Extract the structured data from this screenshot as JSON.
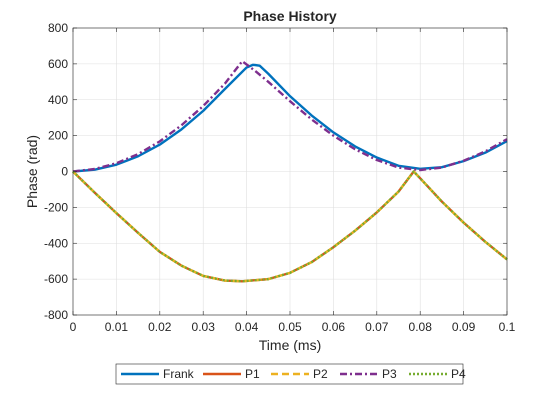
{
  "chart_data": {
    "type": "line",
    "title": "Phase History",
    "xlabel": "Time (ms)",
    "ylabel": "Phase (rad)",
    "xlim": [
      0,
      0.1
    ],
    "ylim": [
      -800,
      800
    ],
    "xticks": [
      0,
      0.01,
      0.02,
      0.03,
      0.04,
      0.05,
      0.06,
      0.07,
      0.08,
      0.09,
      0.1
    ],
    "xtick_labels": [
      "0",
      "0.01",
      "0.02",
      "0.03",
      "0.04",
      "0.05",
      "0.06",
      "0.07",
      "0.08",
      "0.09",
      "0.1"
    ],
    "yticks": [
      -800,
      -600,
      -400,
      -200,
      0,
      200,
      400,
      600,
      800
    ],
    "ytick_labels": [
      "-800",
      "-600",
      "-400",
      "-200",
      "0",
      "200",
      "400",
      "600",
      "800"
    ],
    "grid": true,
    "legend_position": "bottom-outside",
    "series": [
      {
        "name": "Frank",
        "color": "#0072BD",
        "style": "solid",
        "x": [
          0,
          0.005,
          0.01,
          0.015,
          0.02,
          0.025,
          0.03,
          0.035,
          0.04,
          0.0415,
          0.043,
          0.045,
          0.05,
          0.055,
          0.06,
          0.065,
          0.07,
          0.075,
          0.08,
          0.085,
          0.09,
          0.095,
          0.1
        ],
        "y": [
          0,
          10,
          38,
          85,
          150,
          235,
          338,
          460,
          580,
          595,
          590,
          545,
          420,
          312,
          218,
          140,
          78,
          32,
          15,
          24,
          58,
          105,
          170
        ]
      },
      {
        "name": "P1",
        "color": "#D95319",
        "style": "solid",
        "x": [
          0,
          0.005,
          0.01,
          0.015,
          0.02,
          0.025,
          0.03,
          0.035,
          0.039,
          0.045,
          0.05,
          0.055,
          0.06,
          0.065,
          0.07,
          0.075,
          0.0785,
          0.08,
          0.085,
          0.09,
          0.095,
          0.1
        ],
        "y": [
          0,
          -118,
          -232,
          -342,
          -448,
          -525,
          -582,
          -608,
          -612,
          -600,
          -565,
          -505,
          -422,
          -330,
          -228,
          -112,
          0,
          -38,
          -168,
          -285,
          -392,
          -490
        ]
      },
      {
        "name": "P2",
        "color": "#EDB120",
        "style": "dashed",
        "x": [
          0,
          0.005,
          0.01,
          0.015,
          0.02,
          0.025,
          0.03,
          0.035,
          0.039,
          0.045,
          0.05,
          0.055,
          0.06,
          0.065,
          0.07,
          0.075,
          0.0785,
          0.08,
          0.085,
          0.09,
          0.095,
          0.1
        ],
        "y": [
          0,
          -118,
          -232,
          -342,
          -448,
          -525,
          -582,
          -608,
          -612,
          -600,
          -565,
          -505,
          -422,
          -330,
          -228,
          -112,
          0,
          -38,
          -168,
          -285,
          -392,
          -490
        ]
      },
      {
        "name": "P3",
        "color": "#7E2F8E",
        "style": "dashdot",
        "x": [
          0,
          0.005,
          0.01,
          0.015,
          0.02,
          0.025,
          0.03,
          0.035,
          0.039,
          0.042,
          0.045,
          0.05,
          0.055,
          0.06,
          0.065,
          0.07,
          0.075,
          0.08,
          0.085,
          0.09,
          0.095,
          0.1
        ],
        "y": [
          0,
          14,
          46,
          97,
          168,
          258,
          365,
          490,
          615,
          560,
          500,
          392,
          290,
          200,
          124,
          64,
          22,
          8,
          22,
          60,
          112,
          180
        ]
      },
      {
        "name": "P4",
        "color": "#77AC30",
        "style": "dotted",
        "x": [
          0,
          0.005,
          0.01,
          0.015,
          0.02,
          0.025,
          0.03,
          0.035,
          0.039,
          0.045,
          0.05,
          0.055,
          0.06,
          0.065,
          0.07,
          0.075,
          0.0785,
          0.08,
          0.085,
          0.09,
          0.095,
          0.1
        ],
        "y": [
          0,
          -118,
          -232,
          -342,
          -448,
          -525,
          -582,
          -608,
          -612,
          -600,
          -565,
          -505,
          -422,
          -330,
          -228,
          -112,
          0,
          -38,
          -168,
          -285,
          -392,
          -490
        ]
      }
    ]
  }
}
